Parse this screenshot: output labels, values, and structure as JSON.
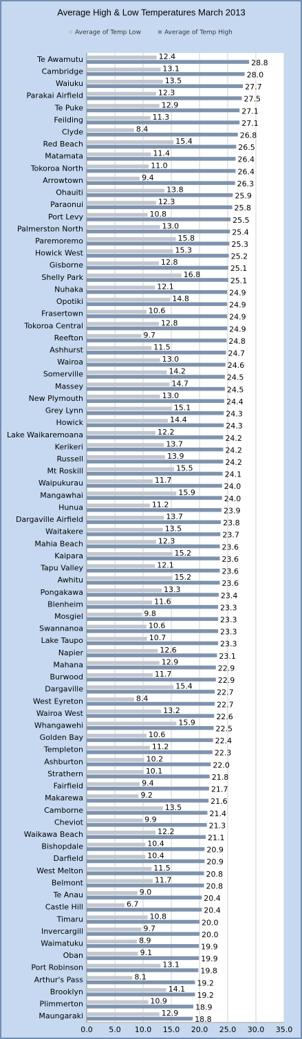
{
  "chart_data": {
    "type": "hbar",
    "title": "Average High & Low Temperatures March 2013",
    "categories": [
      "Te Awamutu",
      "Cambridge",
      "Waiuku",
      "Parakai Airfield",
      "Te Puke",
      "Feilding",
      "Clyde",
      "Red Beach",
      "Matamata",
      "Tokoroa North",
      "Arrowtown",
      "Ohauiti",
      "Paraonui",
      "Port Levy",
      "Palmerston North",
      "Paremoremo",
      "Howick West",
      "Gisborne",
      "Shelly Park",
      "Nuhaka",
      "Opotiki",
      "Frasertown",
      "Tokoroa Central",
      "Reefton",
      "Ashhurst",
      "Wairoa",
      "Somerville",
      "Massey",
      "New Plymouth",
      "Grey Lynn",
      "Howick",
      "Lake Waikaremoana",
      "Kerikeri",
      "Russell",
      "Mt Roskill",
      "Waipukurau",
      "Mangawhai",
      "Hunua",
      "Dargaville Airfield",
      "Waitakere",
      "Mahia Beach",
      "Kaipara",
      "Tapu Valley",
      "Awhitu",
      "Pongakawa",
      "Blenheim",
      "Mosgiel",
      "Swannanoa",
      "Lake Taupo",
      "Napier",
      "Mahana",
      "Burwood",
      "Dargaville",
      "West Eyreton",
      "Wairoa West",
      "Whangawehi",
      "Golden Bay",
      "Templeton",
      "Ashburton",
      "Strathern",
      "Fairfield",
      "Makarewa",
      "Camborne",
      "Cheviot",
      "Waikawa Beach",
      "Bishopdale",
      "Darfield",
      "West Melton",
      "Belmont",
      "Te Anau",
      "Castle Hill",
      "Timaru",
      "Invercargill",
      "Waimatuku",
      "Oban",
      "Port Robinson",
      "Arthur's Pass",
      "Brooklyn",
      "Plimmerton",
      "Maungaraki"
    ],
    "series": [
      {
        "name": "Average of Temp Low",
        "color": "#c0c7d0",
        "values": [
          12.4,
          13.1,
          13.5,
          12.3,
          12.9,
          11.3,
          8.4,
          15.4,
          11.4,
          11.0,
          9.4,
          13.8,
          12.3,
          10.8,
          13.0,
          15.8,
          15.3,
          12.8,
          16.8,
          12.1,
          14.8,
          10.6,
          12.8,
          9.7,
          11.5,
          13.0,
          14.2,
          14.7,
          13.0,
          15.1,
          14.4,
          12.2,
          13.7,
          13.9,
          15.5,
          11.7,
          15.9,
          11.2,
          13.7,
          13.5,
          12.3,
          15.2,
          12.1,
          15.2,
          13.3,
          11.6,
          9.8,
          10.6,
          10.7,
          12.6,
          12.9,
          11.7,
          15.4,
          8.4,
          13.2,
          15.9,
          10.6,
          11.2,
          10.2,
          10.1,
          9.4,
          9.2,
          13.5,
          9.9,
          12.2,
          10.4,
          10.4,
          11.5,
          11.7,
          9.0,
          6.7,
          10.8,
          9.7,
          8.9,
          9.1,
          13.1,
          8.1,
          14.1,
          10.9,
          12.9
        ],
        "value_labels": [
          "12.4",
          "13.1",
          "13.5",
          "12.3",
          "12.9",
          "11.3",
          "8.4",
          "15.4",
          "11.4",
          "11.0",
          "9.4",
          "13.8",
          "12.3",
          "10.8",
          "13.0",
          "15.8",
          "15.3",
          "12.8",
          "16.8",
          "12.1",
          "14.8",
          "10.6",
          "12.8",
          "9.7",
          "11.5",
          "13.0",
          "14.2",
          "14.7",
          "13.0",
          "15.1",
          "14.4",
          "12.2",
          "13.7",
          "13.9",
          "15.5",
          "11.7",
          "15.9",
          "11.2",
          "13.7",
          "13.5",
          "12.3",
          "15.2",
          "12.1",
          "15.2",
          "13.3",
          "11.6",
          "9.8",
          "10.6",
          "10.7",
          "12.6",
          "12.9",
          "11.7",
          "15.4",
          "8.4",
          "13.2",
          "15.9",
          "10.6",
          "11.2",
          "10.2",
          "10.1",
          "9.4",
          "9.2",
          "13.5",
          "9.9",
          "12.2",
          "10.4",
          "10.4",
          "11.5",
          "11.7",
          "9.0",
          "6.7",
          "10.8",
          "9.7",
          "8.9",
          "9.1",
          "13.1",
          "8.1",
          "14.1",
          "10.9",
          "12.9"
        ]
      },
      {
        "name": "Average of Temp High",
        "color": "#7f93ad",
        "values": [
          28.8,
          28.0,
          27.7,
          27.5,
          27.1,
          27.1,
          26.8,
          26.5,
          26.4,
          26.4,
          26.3,
          25.9,
          25.8,
          25.5,
          25.4,
          25.3,
          25.2,
          25.1,
          25.1,
          24.9,
          24.9,
          24.9,
          24.9,
          24.8,
          24.7,
          24.6,
          24.5,
          24.5,
          24.4,
          24.3,
          24.3,
          24.2,
          24.2,
          24.2,
          24.1,
          24.0,
          24.0,
          23.9,
          23.8,
          23.7,
          23.6,
          23.6,
          23.6,
          23.6,
          23.4,
          23.3,
          23.3,
          23.3,
          23.3,
          23.1,
          22.9,
          22.9,
          22.7,
          22.7,
          22.6,
          22.5,
          22.4,
          22.3,
          22.0,
          21.8,
          21.7,
          21.6,
          21.4,
          21.3,
          21.1,
          20.9,
          20.9,
          20.8,
          20.8,
          20.4,
          20.4,
          20.0,
          20.0,
          19.9,
          19.9,
          19.8,
          19.2,
          19.2,
          18.9,
          18.8
        ],
        "value_labels": [
          "28.8",
          "28.0",
          "27.7",
          "27.5",
          "27.1",
          "27.1",
          "26.8",
          "26.5",
          "26.4",
          "26.4",
          "26.3",
          "25.9",
          "25.8",
          "25.5",
          "25.4",
          "25.3",
          "25.2",
          "25.1",
          "25.1",
          "24.9",
          "24.9",
          "24.9",
          "24.9",
          "24.8",
          "24.7",
          "24.6",
          "24.5",
          "24.5",
          "24.4",
          "24.3",
          "24.3",
          "24.2",
          "24.2",
          "24.2",
          "24.1",
          "24.0",
          "24.0",
          "23.9",
          "23.8",
          "23.7",
          "23.6",
          "23.6",
          "23.6",
          "23.6",
          "23.4",
          "23.3",
          "23.3",
          "23.3",
          "23.3",
          "23.1",
          "22.9",
          "22.9",
          "22.7",
          "22.7",
          "22.6",
          "22.5",
          "22.4",
          "22.3",
          "22.0",
          "21.8",
          "21.7",
          "21.6",
          "21.4",
          "21.3",
          "21.1",
          "20.9",
          "20.9",
          "20.8",
          "20.8",
          "20.4",
          "20.4",
          "20.0",
          "20.0",
          "19.9",
          "19.9",
          "19.8",
          "19.2",
          "19.2",
          "18.9",
          "18.8"
        ]
      }
    ],
    "xlim": [
      0,
      35
    ],
    "xticks": [
      {
        "value": 0,
        "label": "0.0"
      },
      {
        "value": 5,
        "label": "5.0"
      },
      {
        "value": 10,
        "label": "10.0"
      },
      {
        "value": 15,
        "label": "15.0"
      },
      {
        "value": 20,
        "label": "20.0"
      },
      {
        "value": 25,
        "label": "25.0"
      },
      {
        "value": 30,
        "label": "30.0"
      },
      {
        "value": 35,
        "label": "35.0"
      }
    ],
    "grid": true,
    "legend": "top"
  }
}
